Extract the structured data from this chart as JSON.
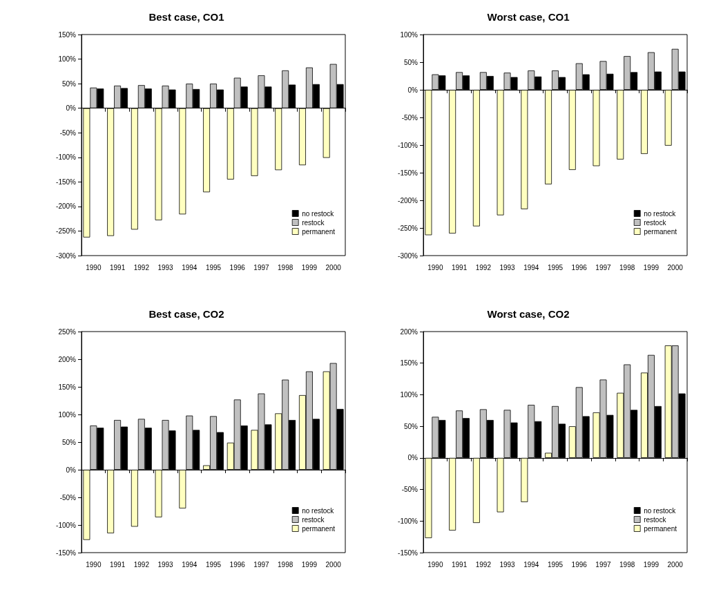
{
  "chart_data": [
    {
      "type": "bar",
      "title": "Best case, CO1",
      "categories": [
        "1990",
        "1991",
        "1992",
        "1993",
        "1994",
        "1995",
        "1996",
        "1997",
        "1998",
        "1999",
        "2000"
      ],
      "ylim": [
        -300,
        150
      ],
      "yticks": [
        {
          "value": -300,
          "label": "-300%"
        },
        {
          "value": -250,
          "label": "-250%"
        },
        {
          "value": -200,
          "label": "-200%"
        },
        {
          "value": -150,
          "label": "-150%"
        },
        {
          "value": -100,
          "label": "-100%"
        },
        {
          "value": -50,
          "label": "-50%"
        },
        {
          "value": 0,
          "label": "0%"
        },
        {
          "value": 50,
          "label": "50%"
        },
        {
          "value": 100,
          "label": "100%"
        },
        {
          "value": 150,
          "label": "150%"
        }
      ],
      "legend": "bottom right",
      "series": [
        {
          "name": "permanent",
          "color": "#ffffc0",
          "values": [
            -263,
            -260,
            -247,
            -228,
            -216,
            -171,
            -145,
            -138,
            -126,
            -116,
            -101
          ]
        },
        {
          "name": "restock",
          "color": "#c0c0c0",
          "values": [
            42,
            46,
            47,
            46,
            50,
            50,
            62,
            67,
            77,
            83,
            90
          ]
        },
        {
          "name": "no restock",
          "color": "#000000",
          "values": [
            40,
            41,
            40,
            38,
            39,
            38,
            44,
            44,
            48,
            49,
            49
          ]
        }
      ]
    },
    {
      "type": "bar",
      "title": "Worst case, CO1",
      "categories": [
        "1990",
        "1991",
        "1992",
        "1993",
        "1994",
        "1995",
        "1996",
        "1997",
        "1998",
        "1999",
        "2000"
      ],
      "ylim": [
        -300,
        100
      ],
      "yticks": [
        {
          "value": -300,
          "label": "-300%"
        },
        {
          "value": -250,
          "label": "-250%"
        },
        {
          "value": -200,
          "label": "-200%"
        },
        {
          "value": -150,
          "label": "-150%"
        },
        {
          "value": -100,
          "label": "-100%"
        },
        {
          "value": -50,
          "label": "-50%"
        },
        {
          "value": 0,
          "label": "0%"
        },
        {
          "value": 50,
          "label": "50%"
        },
        {
          "value": 100,
          "label": "100%"
        }
      ],
      "legend": "bottom right",
      "series": [
        {
          "name": "permanent",
          "color": "#ffffc0",
          "values": [
            -263,
            -260,
            -247,
            -227,
            -216,
            -171,
            -145,
            -138,
            -126,
            -116,
            -101
          ]
        },
        {
          "name": "restock",
          "color": "#c0c0c0",
          "values": [
            28,
            32,
            32,
            31,
            35,
            35,
            48,
            52,
            61,
            68,
            74
          ]
        },
        {
          "name": "no restock",
          "color": "#000000",
          "values": [
            26,
            26,
            25,
            23,
            24,
            23,
            28,
            29,
            32,
            33,
            33
          ]
        }
      ]
    },
    {
      "type": "bar",
      "title": "Best case, CO2",
      "categories": [
        "1990",
        "1991",
        "1992",
        "1993",
        "1994",
        "1995",
        "1996",
        "1997",
        "1998",
        "1999",
        "2000"
      ],
      "ylim": [
        -150,
        250
      ],
      "yticks": [
        {
          "value": -150,
          "label": "-150%"
        },
        {
          "value": -100,
          "label": "-100%"
        },
        {
          "value": -50,
          "label": "-50%"
        },
        {
          "value": 0,
          "label": "0%"
        },
        {
          "value": 50,
          "label": "50%"
        },
        {
          "value": 100,
          "label": "100%"
        },
        {
          "value": 150,
          "label": "150%"
        },
        {
          "value": 200,
          "label": "200%"
        },
        {
          "value": 250,
          "label": "250%"
        }
      ],
      "legend": "bottom right",
      "series": [
        {
          "name": "permanent",
          "color": "#ffffc0",
          "values": [
            -127,
            -115,
            -103,
            -86,
            -70,
            8,
            49,
            72,
            102,
            135,
            178
          ]
        },
        {
          "name": "restock",
          "color": "#c0c0c0",
          "values": [
            80,
            90,
            92,
            90,
            98,
            97,
            127,
            138,
            163,
            178,
            193
          ]
        },
        {
          "name": "no restock",
          "color": "#000000",
          "values": [
            76,
            78,
            76,
            71,
            72,
            68,
            80,
            82,
            90,
            92,
            110
          ]
        }
      ]
    },
    {
      "type": "bar",
      "title": "Worst case, CO2",
      "categories": [
        "1990",
        "1991",
        "1992",
        "1993",
        "1994",
        "1995",
        "1996",
        "1997",
        "1998",
        "1999",
        "2000"
      ],
      "ylim": [
        -150,
        200
      ],
      "yticks": [
        {
          "value": -150,
          "label": "-150%"
        },
        {
          "value": -100,
          "label": "-100%"
        },
        {
          "value": -50,
          "label": "-50%"
        },
        {
          "value": 0,
          "label": "0%"
        },
        {
          "value": 50,
          "label": "50%"
        },
        {
          "value": 100,
          "label": "100%"
        },
        {
          "value": 150,
          "label": "150%"
        },
        {
          "value": 200,
          "label": "200%"
        }
      ],
      "legend": "bottom right",
      "series": [
        {
          "name": "permanent",
          "color": "#ffffc0",
          "values": [
            -127,
            -115,
            -103,
            -86,
            -70,
            8,
            50,
            72,
            103,
            135,
            178
          ]
        },
        {
          "name": "restock",
          "color": "#c0c0c0",
          "values": [
            65,
            75,
            77,
            76,
            84,
            82,
            112,
            124,
            148,
            163,
            178
          ]
        },
        {
          "name": "no restock",
          "color": "#000000",
          "values": [
            60,
            63,
            60,
            56,
            58,
            54,
            66,
            68,
            76,
            82,
            102
          ]
        }
      ]
    }
  ]
}
